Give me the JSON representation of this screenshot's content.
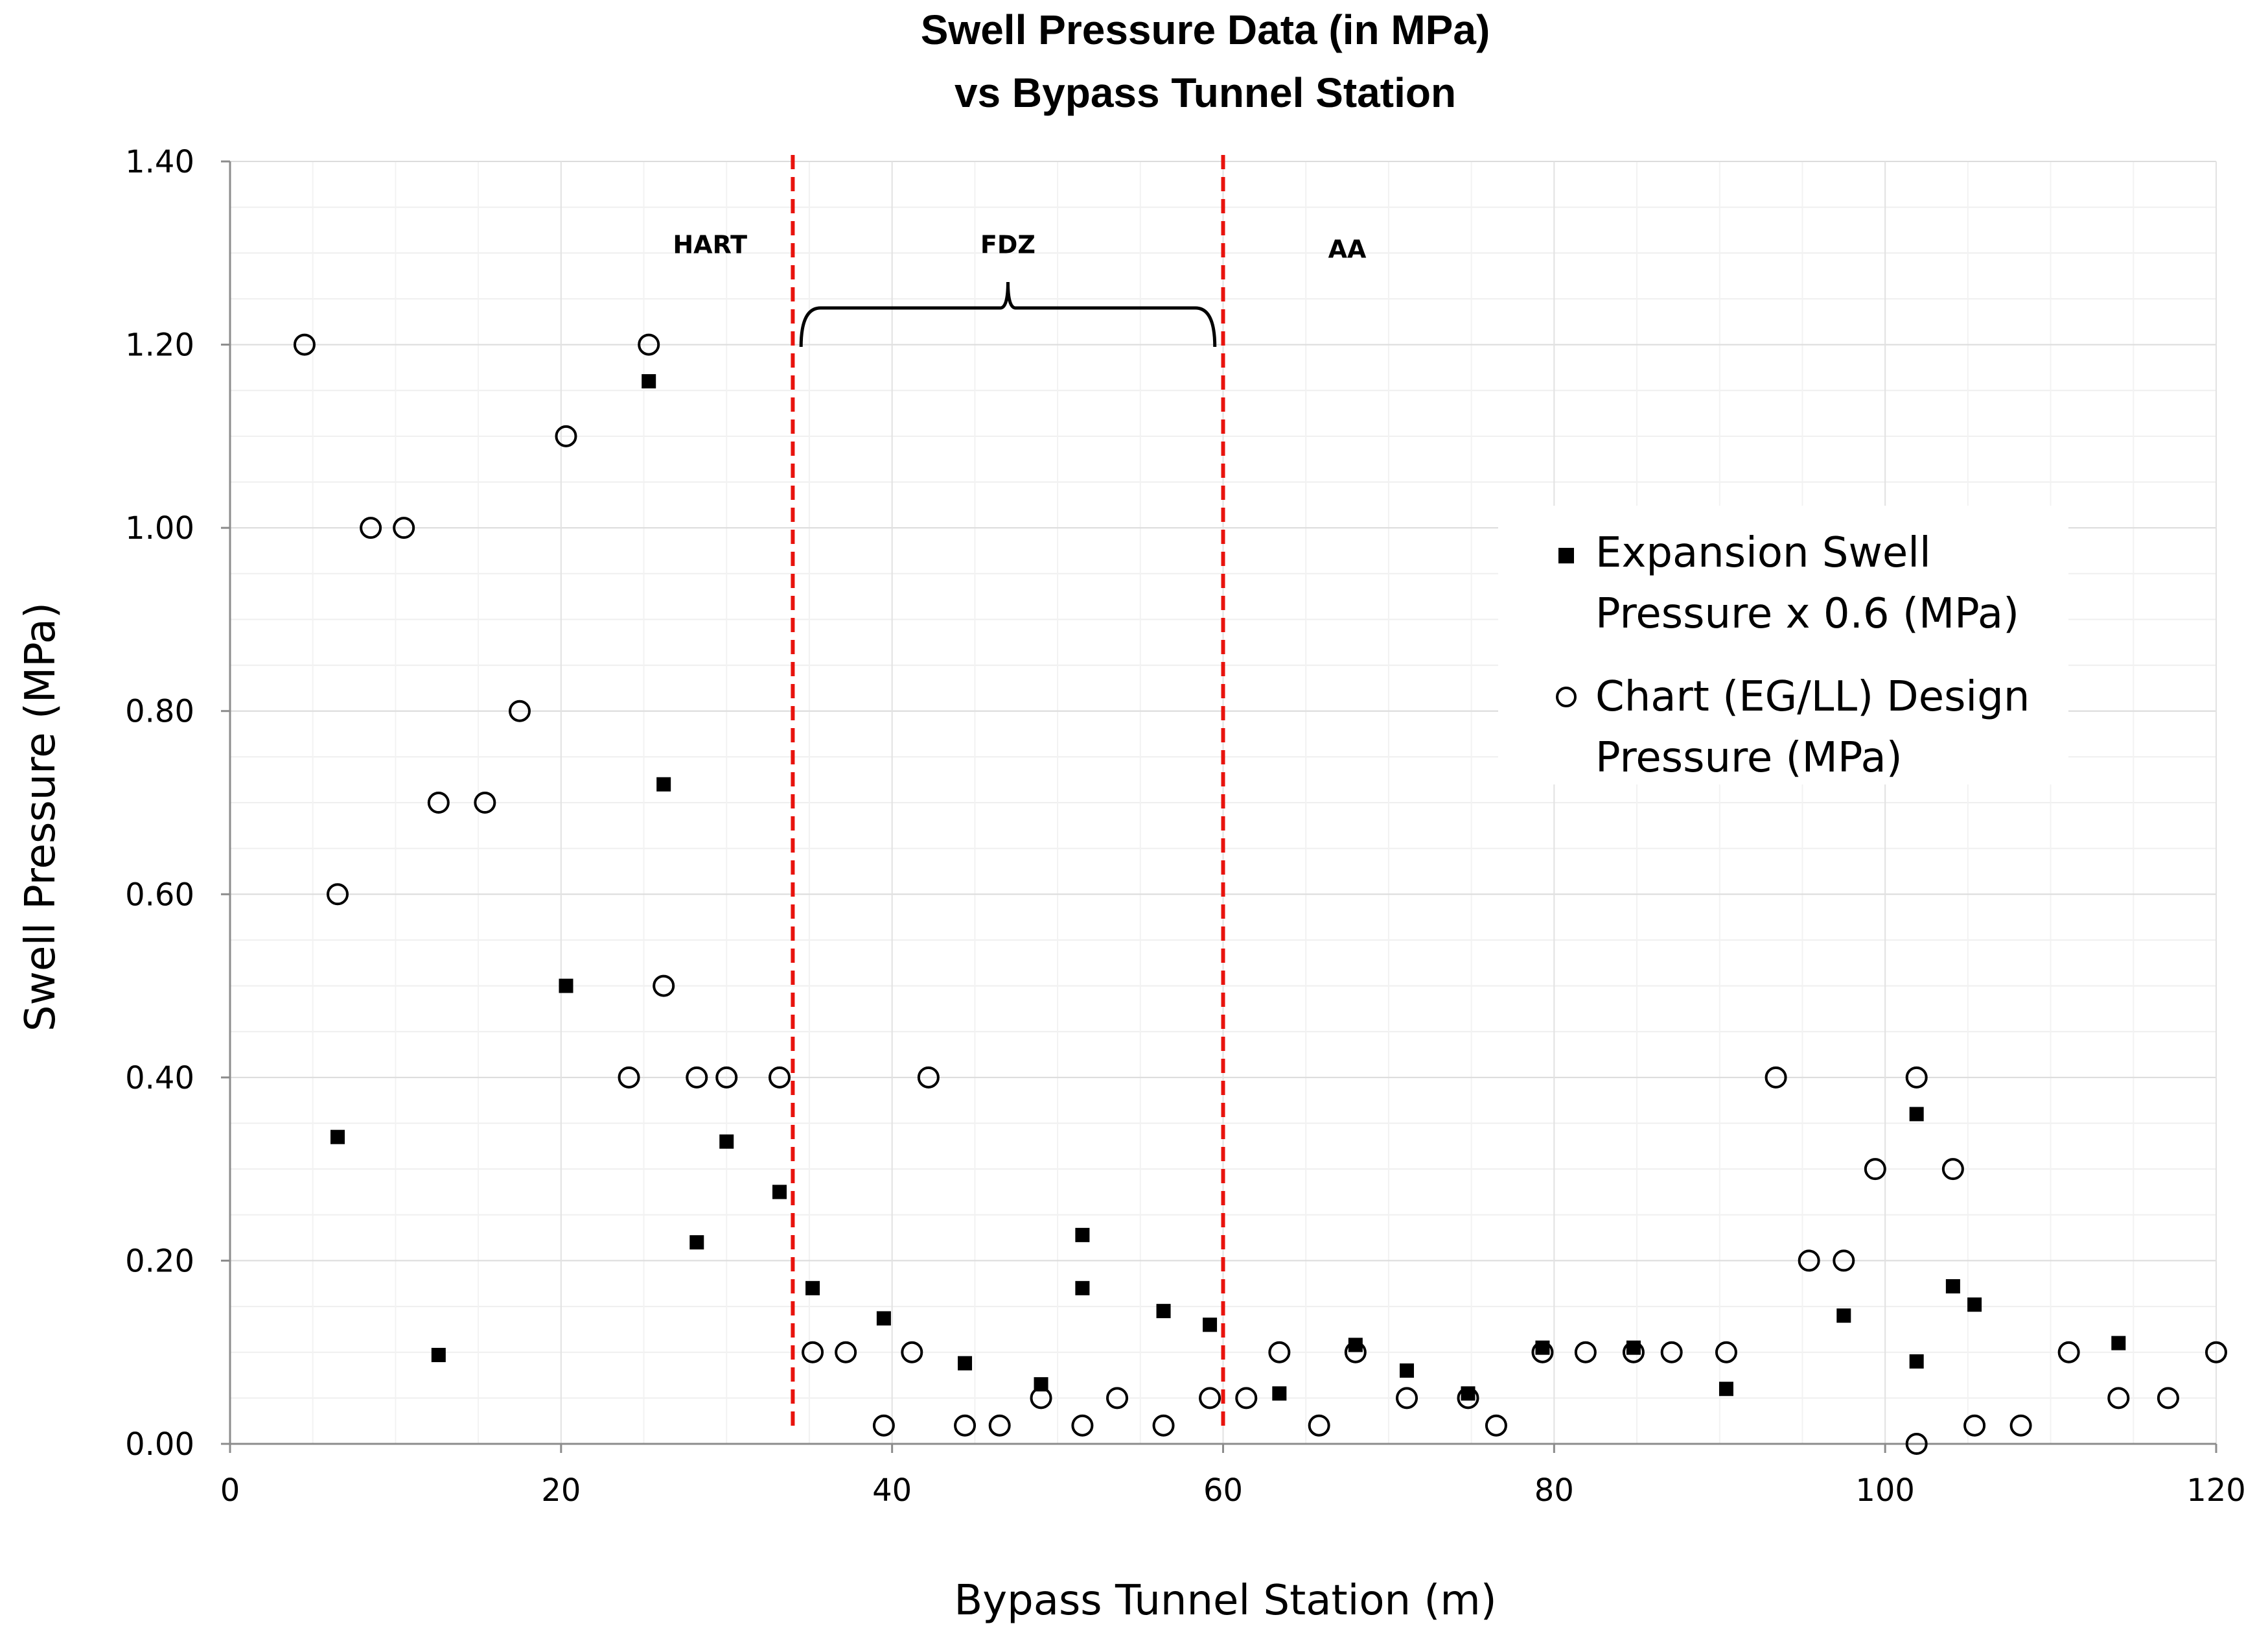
{
  "chart_data": {
    "type": "scatter",
    "title": [
      "Swell Pressure Data (in MPa)",
      "vs Bypass Tunnel Station"
    ],
    "xlabel": "Bypass Tunnel Station (m)",
    "ylabel": "Swell Pressure (MPa)",
    "xlim": [
      0,
      120
    ],
    "ylim": [
      0,
      1.4
    ],
    "x_ticks": [
      0,
      20,
      40,
      60,
      80,
      100,
      120
    ],
    "y_ticks": [
      0,
      0.2,
      0.4,
      0.6,
      0.8,
      1.0,
      1.2,
      1.4
    ],
    "x_tick_labels": [
      "0",
      "20",
      "40",
      "60",
      "80",
      "100",
      "120"
    ],
    "y_tick_labels": [
      "0.00",
      "0.20",
      "0.40",
      "0.60",
      "0.80",
      "1.00",
      "1.20",
      "1.40"
    ],
    "grid": true,
    "legend_position": "right",
    "vertical_lines": [
      34,
      60
    ],
    "zone_labels": [
      {
        "text": "HART",
        "x": 29,
        "y": 1.3
      },
      {
        "text": "FDZ",
        "x": 47,
        "y": 1.3
      },
      {
        "text": "AA",
        "x": 67.5,
        "y": 1.295
      }
    ],
    "brace": {
      "x_start": 34.5,
      "x_end": 59.5,
      "y": 1.24
    },
    "series": [
      {
        "name": "Expansion Swell Pressure x 0.6 (MPa)",
        "legend_lines": [
          "Expansion Swell",
          "Pressure x 0.6 (MPa)"
        ],
        "marker": "square",
        "x": [
          6.5,
          12.6,
          20.3,
          25.3,
          26.2,
          28.2,
          30.0,
          33.2,
          35.2,
          39.5,
          44.4,
          49.0,
          51.5,
          51.5,
          56.4,
          59.2,
          63.4,
          68.0,
          71.1,
          74.8,
          79.3,
          84.8,
          90.4,
          97.5,
          101.9,
          101.9,
          104.1,
          105.4,
          114.1
        ],
        "y": [
          0.335,
          0.097,
          0.5,
          1.16,
          0.72,
          0.22,
          0.33,
          0.275,
          0.17,
          0.137,
          0.088,
          0.065,
          0.228,
          0.17,
          0.145,
          0.13,
          0.055,
          0.108,
          0.08,
          0.055,
          0.105,
          0.105,
          0.06,
          0.14,
          0.09,
          0.36,
          0.172,
          0.152,
          0.11
        ]
      },
      {
        "name": "Chart (EG/LL) Design Pressure (MPa)",
        "legend_lines": [
          "Chart (EG/LL) Design",
          "Pressure (MPa)"
        ],
        "marker": "circle-open",
        "x": [
          4.5,
          6.5,
          8.5,
          10.5,
          12.6,
          15.4,
          17.5,
          20.3,
          24.1,
          25.3,
          26.2,
          28.2,
          30.0,
          33.2,
          35.2,
          37.2,
          39.5,
          41.2,
          42.2,
          44.4,
          46.5,
          49.0,
          51.5,
          53.6,
          56.4,
          59.2,
          61.4,
          63.4,
          65.8,
          68.0,
          71.1,
          74.8,
          76.5,
          79.3,
          81.9,
          84.8,
          87.1,
          90.4,
          93.4,
          95.4,
          97.5,
          99.4,
          101.9,
          101.9,
          104.1,
          105.4,
          108.2,
          111.1,
          114.1,
          117.1,
          120.0
        ],
        "y": [
          1.2,
          0.6,
          1.0,
          1.0,
          0.7,
          0.7,
          0.8,
          1.1,
          0.4,
          1.2,
          0.5,
          0.4,
          0.4,
          0.4,
          0.1,
          0.1,
          0.02,
          0.1,
          0.4,
          0.02,
          0.02,
          0.05,
          0.02,
          0.05,
          0.02,
          0.05,
          0.05,
          0.1,
          0.02,
          0.1,
          0.05,
          0.05,
          0.02,
          0.1,
          0.1,
          0.1,
          0.1,
          0.1,
          0.4,
          0.2,
          0.2,
          0.3,
          0.4,
          0.0,
          0.3,
          0.02,
          0.02,
          0.1,
          0.05,
          0.05,
          0.1
        ]
      }
    ]
  }
}
